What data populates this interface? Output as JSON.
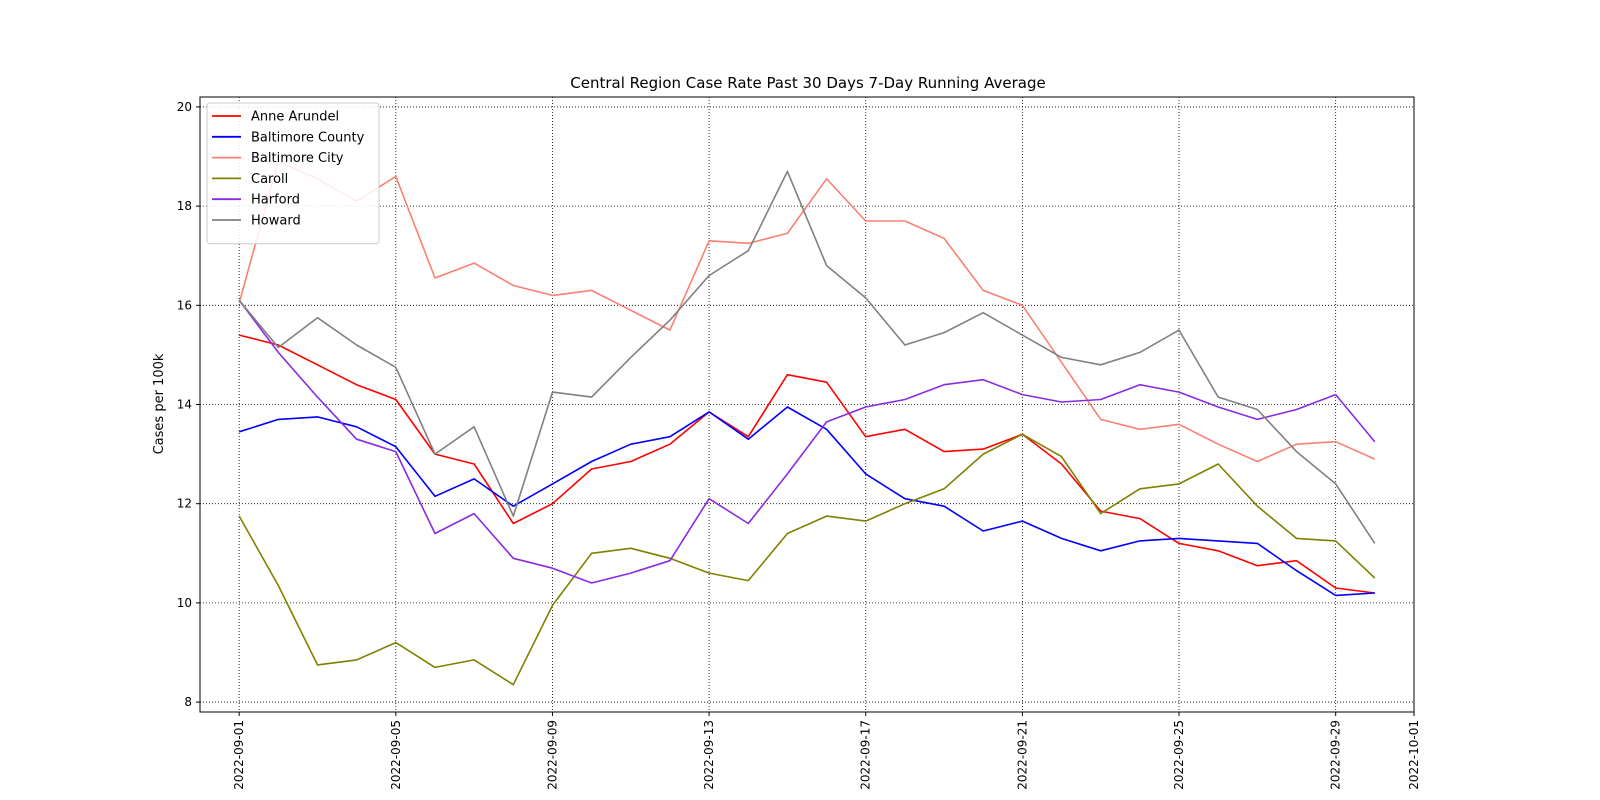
{
  "chart_data": {
    "type": "line",
    "title": "Central Region Case Rate  Past 30 Days 7-Day Running Average",
    "xlabel": "",
    "ylabel": "Cases per 100k",
    "ylim": [
      7.8,
      20.2
    ],
    "xlim": [
      "2022-08-31",
      "2022-10-01"
    ],
    "yticks": [
      8,
      10,
      12,
      14,
      16,
      18,
      20
    ],
    "xticks": [
      "2022-09-01",
      "2022-09-05",
      "2022-09-09",
      "2022-09-13",
      "2022-09-17",
      "2022-09-21",
      "2022-09-25",
      "2022-09-29",
      "2022-10-01"
    ],
    "grid": true,
    "legend_position": "top-left",
    "x": [
      "2022-09-01",
      "2022-09-02",
      "2022-09-03",
      "2022-09-04",
      "2022-09-05",
      "2022-09-06",
      "2022-09-07",
      "2022-09-08",
      "2022-09-09",
      "2022-09-10",
      "2022-09-11",
      "2022-09-12",
      "2022-09-13",
      "2022-09-14",
      "2022-09-15",
      "2022-09-16",
      "2022-09-17",
      "2022-09-18",
      "2022-09-19",
      "2022-09-20",
      "2022-09-21",
      "2022-09-22",
      "2022-09-23",
      "2022-09-24",
      "2022-09-25",
      "2022-09-26",
      "2022-09-27",
      "2022-09-28",
      "2022-09-29",
      "2022-09-30"
    ],
    "series": [
      {
        "name": "Anne Arundel",
        "color": "#ff0000",
        "values": [
          15.4,
          15.2,
          14.8,
          14.4,
          14.1,
          13.0,
          12.8,
          11.6,
          12.0,
          12.7,
          12.85,
          13.2,
          13.85,
          13.35,
          14.6,
          14.45,
          13.35,
          13.5,
          13.05,
          13.1,
          13.4,
          12.8,
          11.85,
          11.7,
          11.2,
          11.05,
          10.75,
          10.85,
          10.3,
          10.2
        ]
      },
      {
        "name": "Baltimore County",
        "color": "#0000ff",
        "values": [
          13.45,
          13.7,
          13.75,
          13.55,
          13.15,
          12.15,
          12.5,
          11.95,
          12.4,
          12.85,
          13.2,
          13.35,
          13.85,
          13.3,
          13.95,
          13.5,
          12.6,
          12.1,
          11.95,
          11.45,
          11.65,
          11.3,
          11.05,
          11.25,
          11.3,
          11.25,
          11.2,
          10.65,
          10.15,
          10.2
        ]
      },
      {
        "name": "Baltimore City",
        "color": "#fa8072",
        "values": [
          16.05,
          18.9,
          18.55,
          18.1,
          18.6,
          16.55,
          16.85,
          16.4,
          16.2,
          16.3,
          15.9,
          15.5,
          17.3,
          17.25,
          17.45,
          18.55,
          17.7,
          17.7,
          17.35,
          16.3,
          16.0,
          14.85,
          13.7,
          13.5,
          13.6,
          13.2,
          12.85,
          13.2,
          13.25,
          12.9
        ]
      },
      {
        "name": "Caroll",
        "color": "#808000",
        "values": [
          11.75,
          10.35,
          8.75,
          8.85,
          9.2,
          8.7,
          8.85,
          8.35,
          9.95,
          11.0,
          11.1,
          10.9,
          10.6,
          10.45,
          11.4,
          11.75,
          11.65,
          12.0,
          12.3,
          13.0,
          13.4,
          12.95,
          11.8,
          12.3,
          12.4,
          12.8,
          11.95,
          11.3,
          11.25,
          10.5
        ]
      },
      {
        "name": "Harford",
        "color": "#8a2be2",
        "values": [
          16.1,
          15.05,
          14.15,
          13.3,
          13.05,
          11.4,
          11.8,
          10.9,
          10.7,
          10.4,
          10.6,
          10.85,
          12.1,
          11.6,
          12.6,
          13.65,
          13.95,
          14.1,
          14.4,
          14.5,
          14.2,
          14.05,
          14.1,
          14.4,
          14.25,
          13.95,
          13.7,
          13.9,
          14.2,
          13.25
        ]
      },
      {
        "name": "Howard",
        "color": "#808080",
        "values": [
          16.1,
          15.15,
          15.75,
          15.2,
          14.75,
          13.0,
          13.55,
          11.75,
          14.25,
          14.15,
          14.95,
          15.7,
          16.6,
          17.1,
          18.7,
          16.8,
          16.15,
          15.2,
          15.45,
          15.85,
          15.4,
          14.95,
          14.8,
          15.05,
          15.5,
          14.15,
          13.9,
          13.05,
          12.4,
          11.2
        ]
      }
    ]
  }
}
